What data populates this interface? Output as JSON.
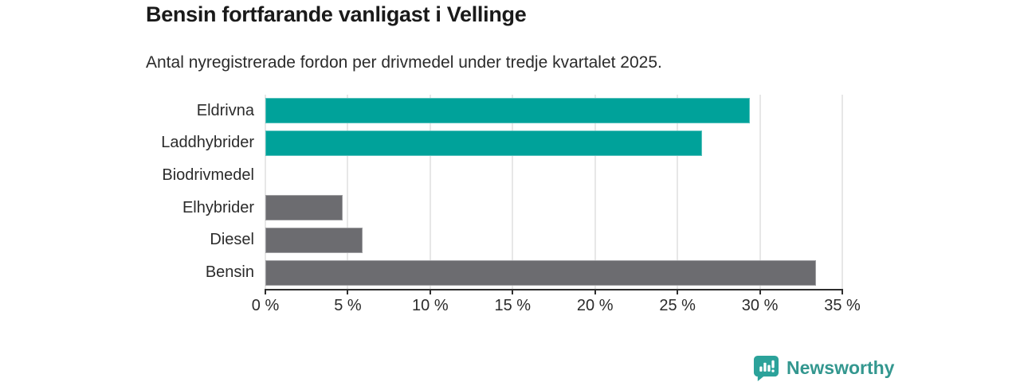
{
  "chart_data": {
    "type": "bar",
    "orientation": "horizontal",
    "title": "Bensin fortfarande vanligast i Vellinge",
    "subtitle": "Antal nyregistrerade fordon per drivmedel under tredje kvartalet 2025.",
    "categories": [
      "Eldrivna",
      "Laddhybrider",
      "Biodrivmedel",
      "Elhybrider",
      "Diesel",
      "Bensin"
    ],
    "values": [
      29.4,
      26.5,
      0,
      4.7,
      5.9,
      33.4
    ],
    "bar_colors": [
      "#00a29a",
      "#00a29a",
      "#6c6c70",
      "#6c6c70",
      "#6c6c70",
      "#6c6c70"
    ],
    "highlight_color": "#00a29a",
    "default_color": "#6c6c70",
    "xlim": [
      0,
      35
    ],
    "x_tick_values": [
      0,
      5,
      10,
      15,
      20,
      25,
      30,
      35
    ],
    "x_tick_labels": [
      "0 %",
      "5 %",
      "10 %",
      "15 %",
      "20 %",
      "25 %",
      "30 %",
      "35 %"
    ],
    "grid": "vertical",
    "legend": "none"
  },
  "footer": {
    "brand": "Newsworthy",
    "logo_icon": "bar-chart-speech-bubble-icon",
    "brand_color": "#33978f"
  }
}
